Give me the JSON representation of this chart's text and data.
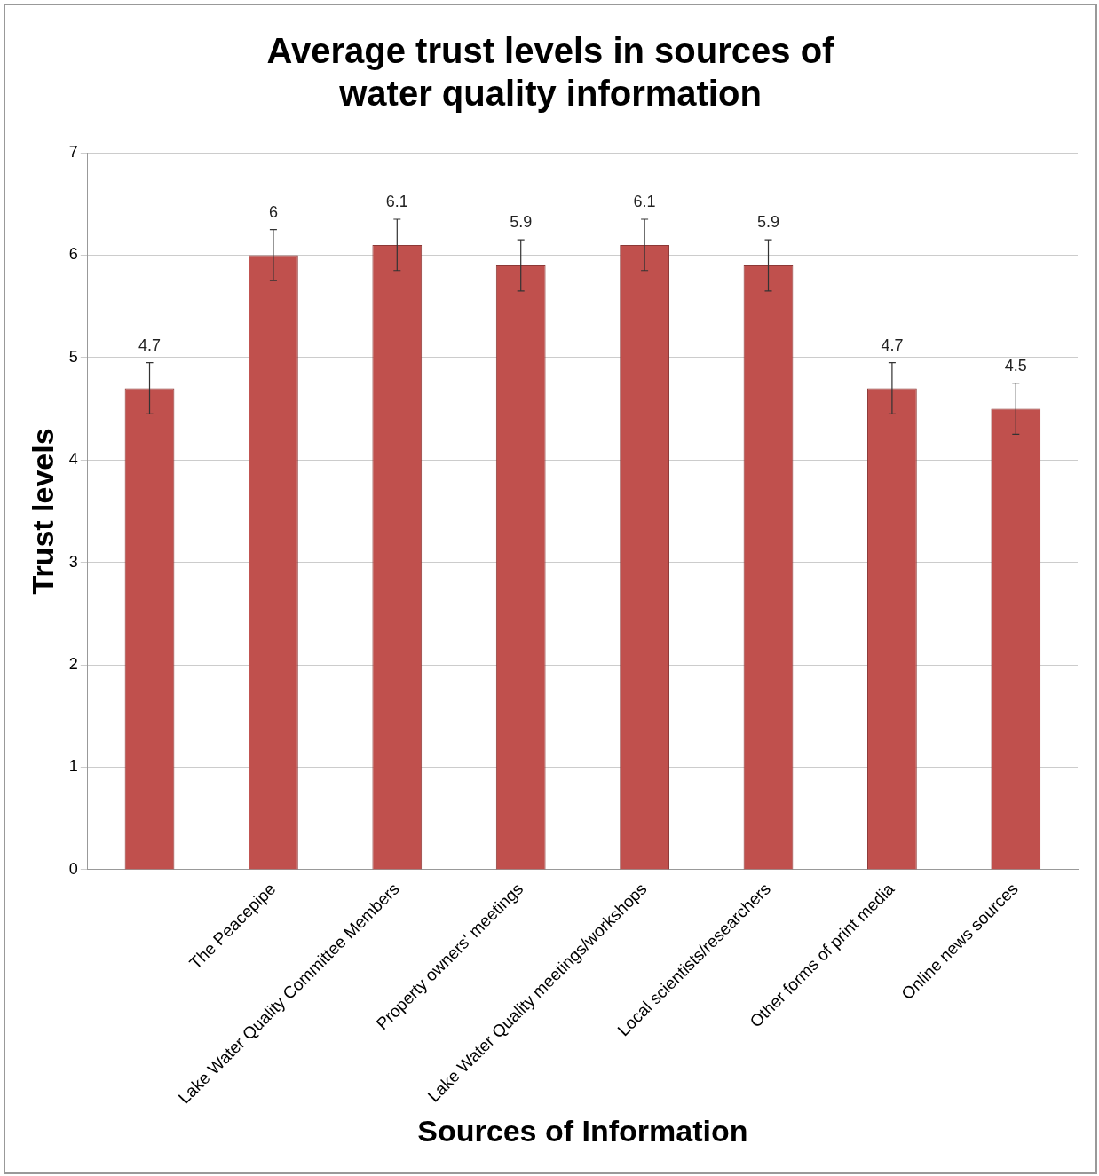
{
  "chart_data": {
    "type": "bar",
    "title": "Average trust levels in sources of water quality information",
    "xlabel": "Sources of Information",
    "ylabel": "Trust levels",
    "categories": [
      null,
      "The Peacepipe",
      "Lake Water Quality Committee Members",
      "Property owners' meetings",
      "Lake Water Quality meetings/workshops",
      "Local scientists/researchers",
      "Other forms of print media",
      "Online news sources"
    ],
    "values": [
      4.7,
      6,
      6.1,
      5.9,
      6.1,
      5.9,
      4.7,
      4.5
    ],
    "errors": [
      0.25,
      0.25,
      0.25,
      0.25,
      0.25,
      0.25,
      0.25,
      0.25
    ],
    "color": "#c0504d",
    "ylim": [
      0,
      7
    ],
    "yticks": [
      0,
      1,
      2,
      3,
      4,
      5,
      6,
      7
    ],
    "grid": "y",
    "data_labels": true,
    "legend": false
  }
}
